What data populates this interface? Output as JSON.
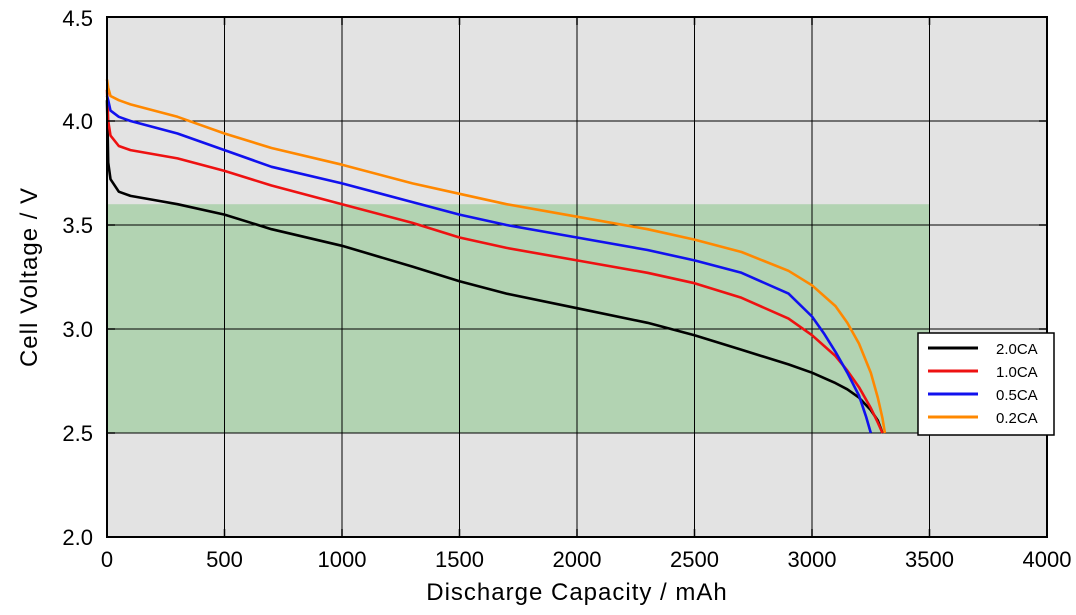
{
  "chart_data": {
    "type": "line",
    "title": "",
    "xlabel": "Discharge  Capacity  /  mAh",
    "ylabel": "Cell  Voltage  /  V",
    "xlim": [
      0,
      4000
    ],
    "ylim": [
      2.0,
      4.5
    ],
    "xticks": [
      0,
      500,
      1000,
      1500,
      2000,
      2500,
      3000,
      3500,
      4000
    ],
    "yticks": [
      2.0,
      2.5,
      3.0,
      3.5,
      4.0,
      4.5
    ],
    "xtick_labels": [
      "0",
      "500",
      "1000",
      "1500",
      "2000",
      "2500",
      "3000",
      "3500",
      "4000"
    ],
    "ytick_labels": [
      "2.0",
      "2.5",
      "3.0",
      "3.5",
      "4.0",
      "4.5"
    ],
    "grid": true,
    "legend_position": "right",
    "background_color": "#e3e3e3",
    "highlight_region": {
      "x": [
        0,
        3500
      ],
      "y": [
        2.5,
        3.6
      ],
      "color": "#b2d3b2"
    },
    "series": [
      {
        "name": "2.0CA",
        "color": "#000000",
        "x": [
          0,
          5,
          15,
          50,
          100,
          200,
          300,
          500,
          700,
          1000,
          1300,
          1500,
          1700,
          2000,
          2300,
          2500,
          2700,
          2900,
          3000,
          3100,
          3150,
          3200,
          3250,
          3280,
          3300
        ],
        "y": [
          4.1,
          3.8,
          3.72,
          3.66,
          3.64,
          3.62,
          3.6,
          3.55,
          3.48,
          3.4,
          3.3,
          3.23,
          3.17,
          3.1,
          3.03,
          2.97,
          2.9,
          2.83,
          2.79,
          2.74,
          2.71,
          2.67,
          2.61,
          2.56,
          2.5
        ]
      },
      {
        "name": "1.0CA",
        "color": "#ee1111",
        "x": [
          0,
          5,
          15,
          50,
          100,
          300,
          500,
          700,
          1000,
          1300,
          1500,
          1700,
          2000,
          2300,
          2500,
          2700,
          2900,
          3000,
          3100,
          3150,
          3200,
          3250,
          3280,
          3300
        ],
        "y": [
          4.15,
          4.0,
          3.93,
          3.88,
          3.86,
          3.82,
          3.76,
          3.69,
          3.6,
          3.51,
          3.44,
          3.39,
          3.33,
          3.27,
          3.22,
          3.15,
          3.05,
          2.97,
          2.87,
          2.8,
          2.72,
          2.62,
          2.55,
          2.5
        ]
      },
      {
        "name": "0.5CA",
        "color": "#1111ee",
        "x": [
          0,
          5,
          15,
          50,
          100,
          300,
          500,
          700,
          1000,
          1300,
          1500,
          1700,
          2000,
          2300,
          2500,
          2700,
          2900,
          3000,
          3050,
          3100,
          3150,
          3200,
          3230,
          3250
        ],
        "y": [
          4.12,
          4.1,
          4.05,
          4.02,
          4.0,
          3.94,
          3.86,
          3.78,
          3.7,
          3.61,
          3.55,
          3.5,
          3.44,
          3.38,
          3.33,
          3.27,
          3.17,
          3.06,
          2.98,
          2.89,
          2.79,
          2.68,
          2.58,
          2.5
        ]
      },
      {
        "name": "0.2CA",
        "color": "#ff8800",
        "x": [
          0,
          5,
          15,
          50,
          100,
          300,
          500,
          700,
          1000,
          1300,
          1500,
          1700,
          2000,
          2300,
          2500,
          2700,
          2900,
          3000,
          3100,
          3150,
          3200,
          3250,
          3280,
          3300,
          3310
        ],
        "y": [
          4.2,
          4.16,
          4.12,
          4.1,
          4.08,
          4.02,
          3.94,
          3.87,
          3.79,
          3.7,
          3.65,
          3.6,
          3.54,
          3.48,
          3.43,
          3.37,
          3.28,
          3.21,
          3.11,
          3.03,
          2.93,
          2.79,
          2.67,
          2.57,
          2.5
        ]
      }
    ]
  }
}
